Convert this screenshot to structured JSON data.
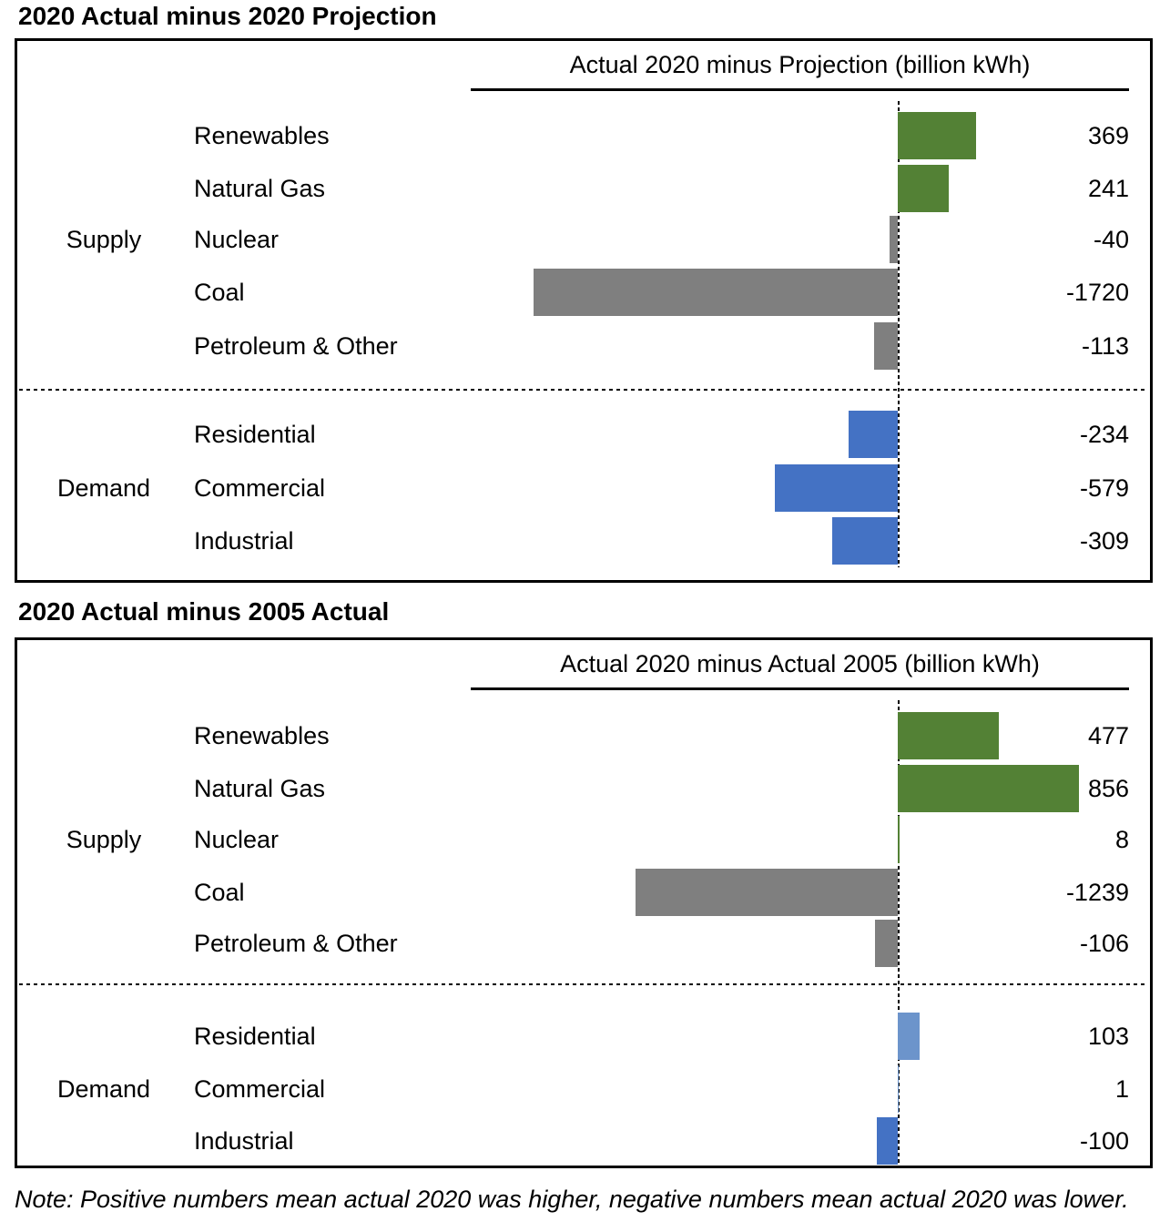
{
  "page": {
    "note": "Note: Positive numbers mean actual 2020 was higher, negative numbers mean actual 2020 was lower."
  },
  "bar_colors": {
    "green": "#538135",
    "gray": "#7F7F7F",
    "blue": "#4472C4",
    "lightblue": "#6C94CB"
  },
  "chart_data": [
    {
      "type": "bar",
      "orientation": "horizontal",
      "title": "2020 Actual minus 2020 Projection",
      "axis_header": "Actual 2020 minus Projection (billion kWh)",
      "unit": "billion kWh",
      "baseline": 0,
      "value_range_plotted": [
        -1720,
        369
      ],
      "groups": [
        {
          "label": "Supply",
          "rows": [
            {
              "label": "Renewables",
              "value": 369,
              "color": "green"
            },
            {
              "label": "Natural Gas",
              "value": 241,
              "color": "green"
            },
            {
              "label": "Nuclear",
              "value": -40,
              "color": "gray"
            },
            {
              "label": "Coal",
              "value": -1720,
              "color": "gray"
            },
            {
              "label": "Petroleum & Other",
              "value": -113,
              "color": "gray"
            }
          ]
        },
        {
          "label": "Demand",
          "rows": [
            {
              "label": "Residential",
              "value": -234,
              "color": "blue"
            },
            {
              "label": "Commercial",
              "value": -579,
              "color": "blue"
            },
            {
              "label": "Industrial",
              "value": -309,
              "color": "blue"
            }
          ]
        }
      ]
    },
    {
      "type": "bar",
      "orientation": "horizontal",
      "title": "2020 Actual minus 2005 Actual",
      "axis_header": "Actual 2020 minus Actual 2005 (billion kWh)",
      "unit": "billion kWh",
      "baseline": 0,
      "value_range_plotted": [
        -1239,
        856
      ],
      "groups": [
        {
          "label": "Supply",
          "rows": [
            {
              "label": "Renewables",
              "value": 477,
              "color": "green"
            },
            {
              "label": "Natural Gas",
              "value": 856,
              "color": "green"
            },
            {
              "label": "Nuclear",
              "value": 8,
              "color": "green"
            },
            {
              "label": "Coal",
              "value": -1239,
              "color": "gray"
            },
            {
              "label": "Petroleum & Other",
              "value": -106,
              "color": "gray"
            }
          ]
        },
        {
          "label": "Demand",
          "rows": [
            {
              "label": "Residential",
              "value": 103,
              "color": "lightblue"
            },
            {
              "label": "Commercial",
              "value": 1,
              "color": "lightblue"
            },
            {
              "label": "Industrial",
              "value": -100,
              "color": "blue"
            }
          ]
        }
      ]
    }
  ]
}
